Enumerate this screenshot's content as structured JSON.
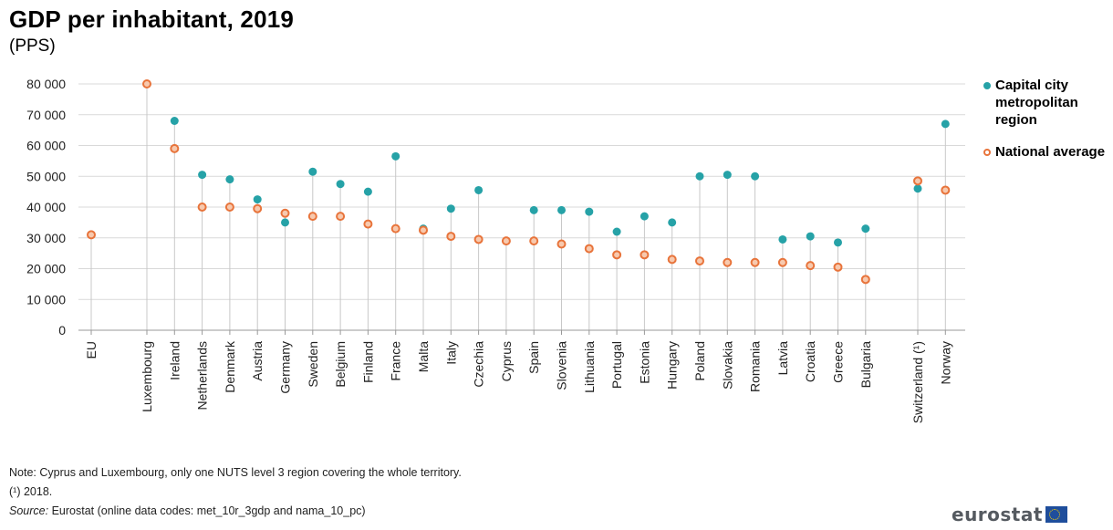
{
  "title": "GDP per inhabitant, 2019",
  "subtitle": "(PPS)",
  "legend": {
    "capital": "Capital city metropolitan region",
    "national": "National average"
  },
  "notes": {
    "note": "Note: Cyprus and Luxembourg, only one NUTS level 3 region covering the whole territory.",
    "footnote": "(¹) 2018.",
    "source_label": "Source:",
    "source": "Eurostat (online data codes: met_10r_3gdp and nama_10_pc)"
  },
  "logo": {
    "text": "eurostat"
  },
  "colors": {
    "capital": "#26a2a7",
    "national": "#e8743b",
    "grid": "#d9d9d9",
    "stem": "#c8c8c8"
  },
  "chart_data": {
    "type": "scatter",
    "title": "GDP per inhabitant, 2019",
    "ylabel": "(PPS)",
    "ylim": [
      0,
      80000
    ],
    "yticks": [
      0,
      10000,
      20000,
      30000,
      40000,
      50000,
      60000,
      70000,
      80000
    ],
    "ytick_labels": [
      "0",
      "10 000",
      "20 000",
      "30 000",
      "40 000",
      "50 000",
      "60 000",
      "70 000",
      "80 000"
    ],
    "grid": true,
    "legend_position": "right",
    "categories": [
      "EU",
      "Luxembourg",
      "Ireland",
      "Netherlands",
      "Denmark",
      "Austria",
      "Germany",
      "Sweden",
      "Belgium",
      "Finland",
      "France",
      "Malta",
      "Italy",
      "Czechia",
      "Cyprus",
      "Spain",
      "Slovenia",
      "Lithuania",
      "Portugal",
      "Estonia",
      "Hungary",
      "Poland",
      "Slovakia",
      "Romania",
      "Latvia",
      "Croatia",
      "Greece",
      "Bulgaria",
      "Switzerland (¹)",
      "Norway"
    ],
    "series": [
      {
        "name": "Capital city metropolitan region",
        "values": [
          null,
          null,
          68000,
          50500,
          49000,
          42500,
          35000,
          51500,
          47500,
          45000,
          56500,
          33000,
          39500,
          45500,
          null,
          39000,
          39000,
          38500,
          32000,
          37000,
          35000,
          50000,
          50500,
          50000,
          29500,
          30500,
          28500,
          33000,
          46000,
          67000
        ]
      },
      {
        "name": "National average",
        "values": [
          31000,
          80000,
          59000,
          40000,
          40000,
          39500,
          38000,
          37000,
          37000,
          34500,
          33000,
          32500,
          30500,
          29500,
          29000,
          29000,
          28000,
          26500,
          24500,
          24500,
          23000,
          22500,
          22000,
          22000,
          22000,
          21000,
          20500,
          16500,
          48500,
          45500
        ]
      }
    ]
  }
}
